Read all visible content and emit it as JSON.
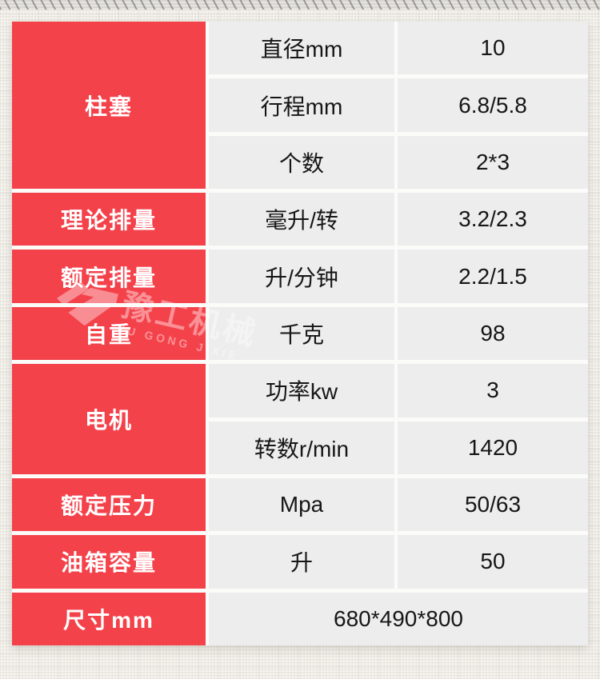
{
  "colors": {
    "accent_red": "#f4424b",
    "cell_gray": "#ededed",
    "text_dark": "#161616",
    "gap_white": "#fbfbfa",
    "background": "#f1efe8"
  },
  "watermark": {
    "logo_icon": "yugong-logo",
    "cn": "豫工机械",
    "en": "YU GONG JIXIE"
  },
  "table": {
    "groups": [
      {
        "label": "柱塞",
        "span": 3
      },
      {
        "label": "理论排量",
        "span": 1
      },
      {
        "label": "额定排量",
        "span": 1
      },
      {
        "label": "自重",
        "span": 1
      },
      {
        "label": "电机",
        "span": 2
      },
      {
        "label": "额定压力",
        "span": 1
      },
      {
        "label": "油箱容量",
        "span": 1
      },
      {
        "label": "尺寸mm",
        "span": 1
      }
    ],
    "rows": [
      {
        "param": "直径mm",
        "value": "10"
      },
      {
        "param": "行程mm",
        "value": "6.8/5.8"
      },
      {
        "param": "个数",
        "value": "2*3"
      },
      {
        "param": "毫升/转",
        "value": "3.2/2.3"
      },
      {
        "param": "升/分钟",
        "value": "2.2/1.5"
      },
      {
        "param": "千克",
        "value": "98"
      },
      {
        "param": "功率kw",
        "value": "3"
      },
      {
        "param": "转数r/min",
        "value": "1420"
      },
      {
        "param": "Mpa",
        "value": "50/63"
      },
      {
        "param": "升",
        "value": "50"
      }
    ],
    "merged_row_value": "680*490*800"
  }
}
